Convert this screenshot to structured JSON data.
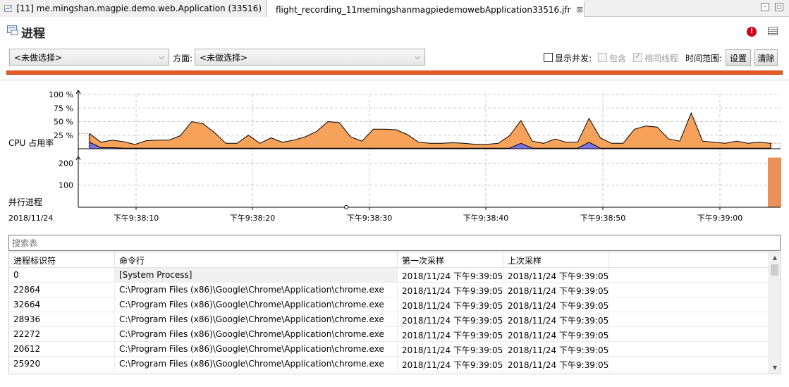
{
  "tabs": [
    {
      "label": "[11] me.mingshan.magpie.demo.web.Application (33516)",
      "active": false
    },
    {
      "label": "flight_recording_11memingshanmagpiedemowebApplication33516.jfr",
      "active": true,
      "close": "⊠"
    }
  ],
  "header": {
    "title": "进程",
    "filter1": "<未做选择>",
    "aspect_label": "方面:",
    "filter2": "<未做选择>",
    "show_concurrent_label": "显示并发:",
    "include_label": "包含",
    "same_thread_label": "相同线程",
    "time_range_label": "时间范围:",
    "settings_button": "设置",
    "clear_button": "清除"
  },
  "colors": {
    "accent_bar": "#e85b24",
    "area_fill": "#f7a25a",
    "area_stroke": "#000000",
    "blue_fill": "#7b74e6"
  },
  "chart_data": {
    "type": "area",
    "x_start_label": "2018/11/24",
    "x_ticks": [
      "下午9:38:10",
      "下午9:38:20",
      "下午9:38:30",
      "下午9:38:40",
      "下午9:38:50",
      "下午9:39:00"
    ],
    "cpu": {
      "label": "CPU 占用率",
      "y_ticks": [
        "100 %",
        "75 %",
        "50 %",
        "25 %"
      ],
      "ylim": [
        0,
        100
      ],
      "series": [
        {
          "name": "",
          "values": [
            28,
            12,
            16,
            13,
            8,
            15,
            16,
            16,
            24,
            50,
            46,
            30,
            10,
            10,
            25,
            10,
            20,
            12,
            16,
            22,
            32,
            50,
            48,
            22,
            14,
            36,
            36,
            35,
            26,
            12,
            10,
            10,
            11,
            10,
            8,
            8,
            10,
            24,
            52,
            14,
            10,
            18,
            12,
            12,
            56,
            20,
            10,
            10,
            36,
            42,
            40,
            18,
            14,
            66,
            14,
            12,
            10,
            14,
            10,
            12,
            10
          ]
        },
        {
          "name": "",
          "values": [
            12,
            2,
            2,
            1,
            1,
            1,
            1,
            1,
            1,
            1,
            1,
            1,
            1,
            1,
            1,
            1,
            1,
            1,
            1,
            1,
            1,
            1,
            1,
            1,
            1,
            1,
            1,
            1,
            1,
            1,
            1,
            1,
            1,
            1,
            1,
            1,
            1,
            1,
            10,
            1,
            1,
            1,
            1,
            1,
            12,
            1,
            1,
            1,
            1,
            1,
            1,
            1,
            1,
            1,
            1,
            1,
            1,
            1,
            1,
            1,
            1
          ]
        }
      ]
    },
    "parallel": {
      "label": "并行进程",
      "y_ticks": [
        "200",
        "100"
      ],
      "ylim": [
        0,
        230
      ],
      "last_value": 225
    }
  },
  "search": {
    "placeholder": "搜索表"
  },
  "table": {
    "columns": [
      "进程标识符",
      "命令行",
      "第一次采样",
      "上次采样",
      ""
    ],
    "rows": [
      [
        "0",
        "[System Process]",
        "2018/11/24 下午9:39:05",
        "2018/11/24 下午9:39:05"
      ],
      [
        "22864",
        "C:\\Program Files (x86)\\Google\\Chrome\\Application\\chrome.exe",
        "2018/11/24 下午9:39:05",
        "2018/11/24 下午9:39:05"
      ],
      [
        "32664",
        "C:\\Program Files (x86)\\Google\\Chrome\\Application\\chrome.exe",
        "2018/11/24 下午9:39:05",
        "2018/11/24 下午9:39:05"
      ],
      [
        "28936",
        "C:\\Program Files (x86)\\Google\\Chrome\\Application\\chrome.exe",
        "2018/11/24 下午9:39:05",
        "2018/11/24 下午9:39:05"
      ],
      [
        "22272",
        "C:\\Program Files (x86)\\Google\\Chrome\\Application\\chrome.exe",
        "2018/11/24 下午9:39:05",
        "2018/11/24 下午9:39:05"
      ],
      [
        "20612",
        "C:\\Program Files (x86)\\Google\\Chrome\\Application\\chrome.exe",
        "2018/11/24 下午9:39:05",
        "2018/11/24 下午9:39:05"
      ],
      [
        "25920",
        "C:\\Program Files (x86)\\Google\\Chrome\\Application\\chrome.exe",
        "2018/11/24 下午9:39:05",
        "2018/11/24 下午9:39:05"
      ]
    ]
  }
}
